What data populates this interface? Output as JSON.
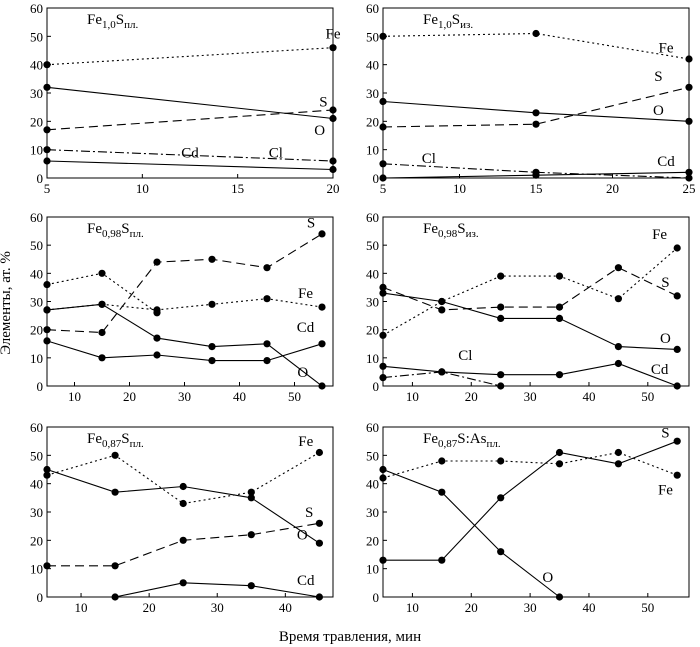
{
  "figure": {
    "ylabel": "Элементы, ат. %",
    "xlabel": "Время травления, мин"
  },
  "chart_data": [
    {
      "type": "line",
      "title": {
        "main": "Fe",
        "sub1": "1,0",
        "mid": "S",
        "sub2": "пл."
      },
      "xlim": [
        5,
        20
      ],
      "ylim": [
        0,
        60
      ],
      "xticks": [
        5,
        10,
        15,
        20
      ],
      "yticks": [
        0,
        10,
        20,
        30,
        40,
        50,
        60
      ],
      "series": [
        {
          "name": "Fe",
          "dash": "dotted",
          "points": [
            [
              5,
              40
            ],
            [
              20,
              46
            ]
          ]
        },
        {
          "name": "S",
          "dash": "dashed",
          "points": [
            [
              5,
              17
            ],
            [
              20,
              24
            ]
          ]
        },
        {
          "name": "O",
          "dash": "solid",
          "points": [
            [
              5,
              32
            ],
            [
              20,
              21
            ]
          ]
        },
        {
          "name": "Cl",
          "dash": "dashdot",
          "points": [
            [
              5,
              10
            ],
            [
              20,
              6
            ]
          ]
        },
        {
          "name": "Cd",
          "dash": "solid",
          "points": [
            [
              5,
              6
            ],
            [
              20,
              3
            ]
          ]
        }
      ],
      "labels": [
        {
          "text": "Fe",
          "x": 20,
          "y": 51
        },
        {
          "text": "S",
          "x": 19.5,
          "y": 27
        },
        {
          "text": "O",
          "x": 19.3,
          "y": 17
        },
        {
          "text": "Cl",
          "x": 17,
          "y": 9
        },
        {
          "text": "Cd",
          "x": 12.5,
          "y": 9
        }
      ]
    },
    {
      "type": "line",
      "title": {
        "main": "Fe",
        "sub1": "1,0",
        "mid": "S",
        "sub2": "из."
      },
      "xlim": [
        5,
        25
      ],
      "ylim": [
        0,
        60
      ],
      "xticks": [
        5,
        10,
        15,
        20,
        25
      ],
      "yticks": [
        0,
        10,
        20,
        30,
        40,
        50,
        60
      ],
      "series": [
        {
          "name": "Fe",
          "dash": "dotted",
          "points": [
            [
              5,
              50
            ],
            [
              15,
              51
            ],
            [
              25,
              42
            ]
          ]
        },
        {
          "name": "S",
          "dash": "dashed",
          "points": [
            [
              5,
              18
            ],
            [
              15,
              19
            ],
            [
              25,
              32
            ]
          ]
        },
        {
          "name": "O",
          "dash": "solid",
          "points": [
            [
              5,
              27
            ],
            [
              15,
              23
            ],
            [
              25,
              20
            ]
          ]
        },
        {
          "name": "Cl",
          "dash": "dashdot",
          "points": [
            [
              5,
              5
            ],
            [
              15,
              2
            ],
            [
              25,
              0
            ]
          ]
        },
        {
          "name": "Cd",
          "dash": "solid",
          "points": [
            [
              5,
              0
            ],
            [
              15,
              1
            ],
            [
              25,
              2
            ]
          ]
        }
      ],
      "labels": [
        {
          "text": "Fe",
          "x": 23.5,
          "y": 46
        },
        {
          "text": "S",
          "x": 23,
          "y": 36
        },
        {
          "text": "O",
          "x": 23,
          "y": 24
        },
        {
          "text": "Cl",
          "x": 8,
          "y": 7
        },
        {
          "text": "Cd",
          "x": 23.5,
          "y": 6
        }
      ]
    },
    {
      "type": "line",
      "title": {
        "main": "Fe",
        "sub1": "0,98",
        "mid": "S",
        "sub2": "пл."
      },
      "xlim": [
        5,
        57
      ],
      "ylim": [
        0,
        60
      ],
      "xticks": [
        10,
        20,
        30,
        40,
        50
      ],
      "yticks": [
        0,
        10,
        20,
        30,
        40,
        50,
        60
      ],
      "series": [
        {
          "name": "Fe",
          "dash": "dotted",
          "points": [
            [
              5,
              27
            ],
            [
              15,
              29
            ],
            [
              25,
              27
            ],
            [
              35,
              29
            ],
            [
              45,
              31
            ],
            [
              55,
              28
            ]
          ]
        },
        {
          "name": "S",
          "dash": "dashed",
          "points": [
            [
              5,
              20
            ],
            [
              15,
              19
            ],
            [
              25,
              44
            ],
            [
              35,
              45
            ],
            [
              45,
              42
            ],
            [
              55,
              54
            ]
          ]
        },
        {
          "name": "Fe (upper)",
          "dash": "dotted",
          "points": [
            [
              5,
              36
            ],
            [
              15,
              40
            ],
            [
              25,
              26
            ]
          ]
        },
        {
          "name": "O",
          "dash": "solid",
          "points": [
            [
              5,
              27
            ],
            [
              15,
              29
            ],
            [
              25,
              17
            ],
            [
              35,
              14
            ],
            [
              45,
              15
            ],
            [
              55,
              0
            ]
          ]
        },
        {
          "name": "Cd",
          "dash": "solid",
          "points": [
            [
              5,
              16
            ],
            [
              15,
              10
            ],
            [
              25,
              11
            ],
            [
              35,
              9
            ],
            [
              45,
              9
            ],
            [
              55,
              15
            ]
          ]
        }
      ],
      "labels": [
        {
          "text": "S",
          "x": 53,
          "y": 58
        },
        {
          "text": "Fe",
          "x": 52,
          "y": 33
        },
        {
          "text": "Cd",
          "x": 52,
          "y": 21
        },
        {
          "text": "O",
          "x": 51.5,
          "y": 5
        }
      ]
    },
    {
      "type": "line",
      "title": {
        "main": "Fe",
        "sub1": "0,98",
        "mid": "S",
        "sub2": "из."
      },
      "xlim": [
        5,
        57
      ],
      "ylim": [
        0,
        60
      ],
      "xticks": [
        10,
        20,
        30,
        40,
        50
      ],
      "yticks": [
        0,
        10,
        20,
        30,
        40,
        50,
        60
      ],
      "series": [
        {
          "name": "Fe",
          "dash": "dotted",
          "points": [
            [
              5,
              18
            ],
            [
              15,
              30
            ],
            [
              25,
              39
            ],
            [
              35,
              39
            ],
            [
              45,
              31
            ],
            [
              55,
              49
            ]
          ]
        },
        {
          "name": "S",
          "dash": "dashed",
          "points": [
            [
              5,
              35
            ],
            [
              15,
              27
            ],
            [
              25,
              28
            ],
            [
              35,
              28
            ],
            [
              45,
              42
            ],
            [
              55,
              32
            ]
          ]
        },
        {
          "name": "O",
          "dash": "solid",
          "points": [
            [
              5,
              33
            ],
            [
              15,
              30
            ],
            [
              25,
              24
            ],
            [
              35,
              24
            ],
            [
              45,
              14
            ],
            [
              55,
              13
            ]
          ]
        },
        {
          "name": "Cl",
          "dash": "dashdot",
          "points": [
            [
              5,
              3
            ],
            [
              15,
              5
            ],
            [
              25,
              0
            ]
          ]
        },
        {
          "name": "Cd",
          "dash": "solid",
          "points": [
            [
              5,
              7
            ],
            [
              15,
              5
            ],
            [
              25,
              4
            ],
            [
              35,
              4
            ],
            [
              45,
              8
            ],
            [
              55,
              0
            ]
          ]
        }
      ],
      "labels": [
        {
          "text": "Fe",
          "x": 52,
          "y": 54
        },
        {
          "text": "S",
          "x": 53,
          "y": 37
        },
        {
          "text": "O",
          "x": 53,
          "y": 17
        },
        {
          "text": "Cl",
          "x": 19,
          "y": 11
        },
        {
          "text": "Cd",
          "x": 52,
          "y": 6
        }
      ]
    },
    {
      "type": "line",
      "title": {
        "main": "Fe",
        "sub1": "0,87",
        "mid": "S",
        "sub2": "пл."
      },
      "xlim": [
        5,
        47
      ],
      "ylim": [
        0,
        60
      ],
      "xticks": [
        10,
        20,
        30,
        40
      ],
      "yticks": [
        0,
        10,
        20,
        30,
        40,
        50,
        60
      ],
      "series": [
        {
          "name": "Fe",
          "dash": "dotted",
          "points": [
            [
              5,
              43
            ],
            [
              15,
              50
            ],
            [
              25,
              33
            ],
            [
              35,
              37
            ],
            [
              45,
              51
            ]
          ]
        },
        {
          "name": "S",
          "dash": "dashed",
          "points": [
            [
              5,
              11
            ],
            [
              15,
              11
            ],
            [
              25,
              20
            ],
            [
              35,
              22
            ],
            [
              45,
              26
            ]
          ]
        },
        {
          "name": "O",
          "dash": "solid",
          "points": [
            [
              5,
              45
            ],
            [
              15,
              37
            ],
            [
              25,
              39
            ],
            [
              35,
              35
            ],
            [
              45,
              19
            ]
          ]
        },
        {
          "name": "Cd",
          "dash": "solid",
          "points": [
            [
              15,
              0
            ],
            [
              25,
              5
            ],
            [
              35,
              4
            ],
            [
              45,
              0
            ]
          ]
        }
      ],
      "labels": [
        {
          "text": "Fe",
          "x": 43,
          "y": 55
        },
        {
          "text": "S",
          "x": 43.5,
          "y": 30
        },
        {
          "text": "O",
          "x": 42.5,
          "y": 22
        },
        {
          "text": "Cd",
          "x": 43,
          "y": 6
        }
      ]
    },
    {
      "type": "line",
      "title": {
        "main": "Fe",
        "sub1": "0,87",
        "mid": "S:As",
        "sub2": "пл."
      },
      "xlim": [
        5,
        57
      ],
      "ylim": [
        0,
        60
      ],
      "xticks": [
        10,
        20,
        30,
        40,
        50
      ],
      "yticks": [
        0,
        10,
        20,
        30,
        40,
        50,
        60
      ],
      "series": [
        {
          "name": "Fe",
          "dash": "dotted",
          "points": [
            [
              5,
              42
            ],
            [
              15,
              48
            ],
            [
              25,
              48
            ],
            [
              35,
              47
            ],
            [
              45,
              51
            ],
            [
              55,
              43
            ]
          ]
        },
        {
          "name": "S",
          "dash": "solid",
          "points": [
            [
              5,
              13
            ],
            [
              15,
              13
            ],
            [
              25,
              35
            ],
            [
              35,
              51
            ],
            [
              45,
              47
            ],
            [
              55,
              55
            ]
          ]
        },
        {
          "name": "O",
          "dash": "solid",
          "points": [
            [
              5,
              45
            ],
            [
              15,
              37
            ],
            [
              25,
              16
            ],
            [
              35,
              0
            ]
          ]
        }
      ],
      "labels": [
        {
          "text": "S",
          "x": 53,
          "y": 58
        },
        {
          "text": "Fe",
          "x": 53,
          "y": 38
        },
        {
          "text": "O",
          "x": 33,
          "y": 7
        }
      ]
    }
  ]
}
